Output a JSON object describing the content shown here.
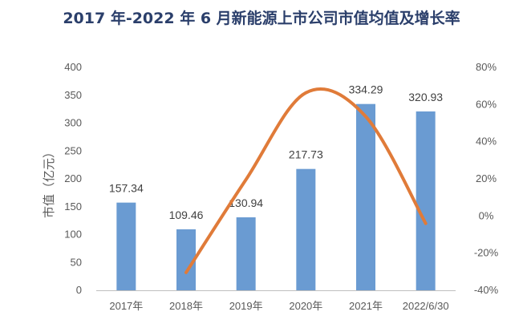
{
  "chart_data": {
    "type": "bar",
    "title": "2017 年-2022 年 6 月新能源上市公司市值均值及增长率",
    "categories": [
      "2017年",
      "2018年",
      "2019年",
      "2020年",
      "2021年",
      "2022/6/30"
    ],
    "series": [
      {
        "name": "市值",
        "type": "bar",
        "axis": "left",
        "values": [
          157.34,
          109.46,
          130.94,
          217.73,
          334.29,
          320.93
        ],
        "value_labels": [
          "157.34",
          "109.46",
          "130.94",
          "217.73",
          "334.29",
          "320.93"
        ],
        "color": "#6a9bd2"
      },
      {
        "name": "增长率",
        "type": "line",
        "axis": "right",
        "smooth": true,
        "values": [
          null,
          -30.4,
          19.6,
          66.3,
          53.5,
          -4.0
        ],
        "color": "#e07b39"
      }
    ],
    "ylabel": "市值（亿元）",
    "ylim": [
      0,
      400
    ],
    "yticks": [
      "0",
      "50",
      "100",
      "150",
      "200",
      "250",
      "300",
      "350",
      "400"
    ],
    "y2lim": [
      -40,
      80
    ],
    "y2ticks": [
      "-40%",
      "-20%",
      "0%",
      "20%",
      "40%",
      "60%",
      "80%"
    ],
    "grid": false,
    "legend": "none"
  }
}
